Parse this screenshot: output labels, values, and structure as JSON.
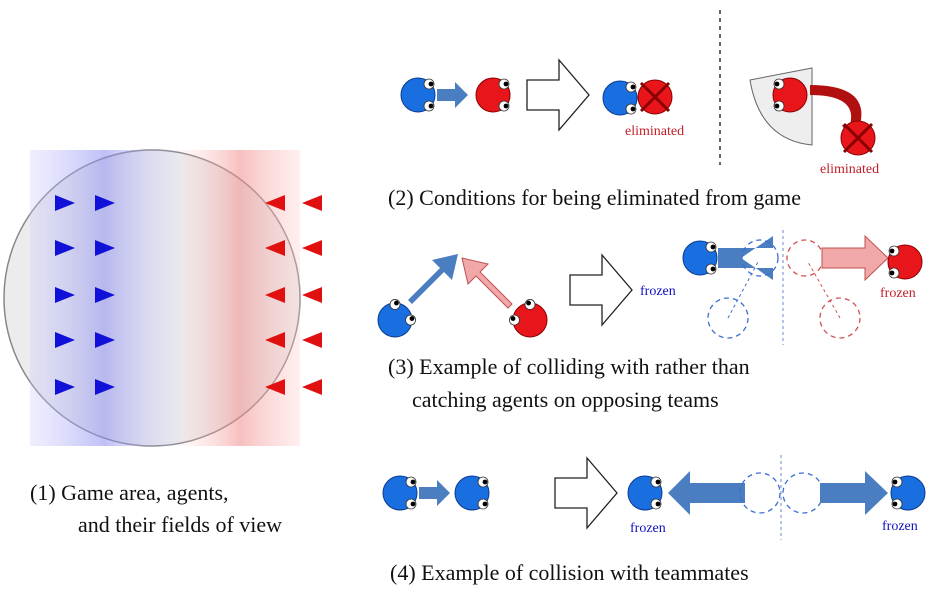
{
  "captions": {
    "game_area": [
      "(1) Game area, agents,",
      "and their fields of view"
    ],
    "elimination": "(2) Conditions for being eliminated from game",
    "opposing": [
      "(3) Example of colliding with rather than",
      "catching agents on opposing teams"
    ],
    "teammates": "(4) Example of collision with teammates"
  },
  "labels": {
    "eliminated": [
      "eliminated",
      "eliminated"
    ],
    "frozen": [
      "frozen",
      "frozen",
      "frozen",
      "frozen"
    ]
  }
}
